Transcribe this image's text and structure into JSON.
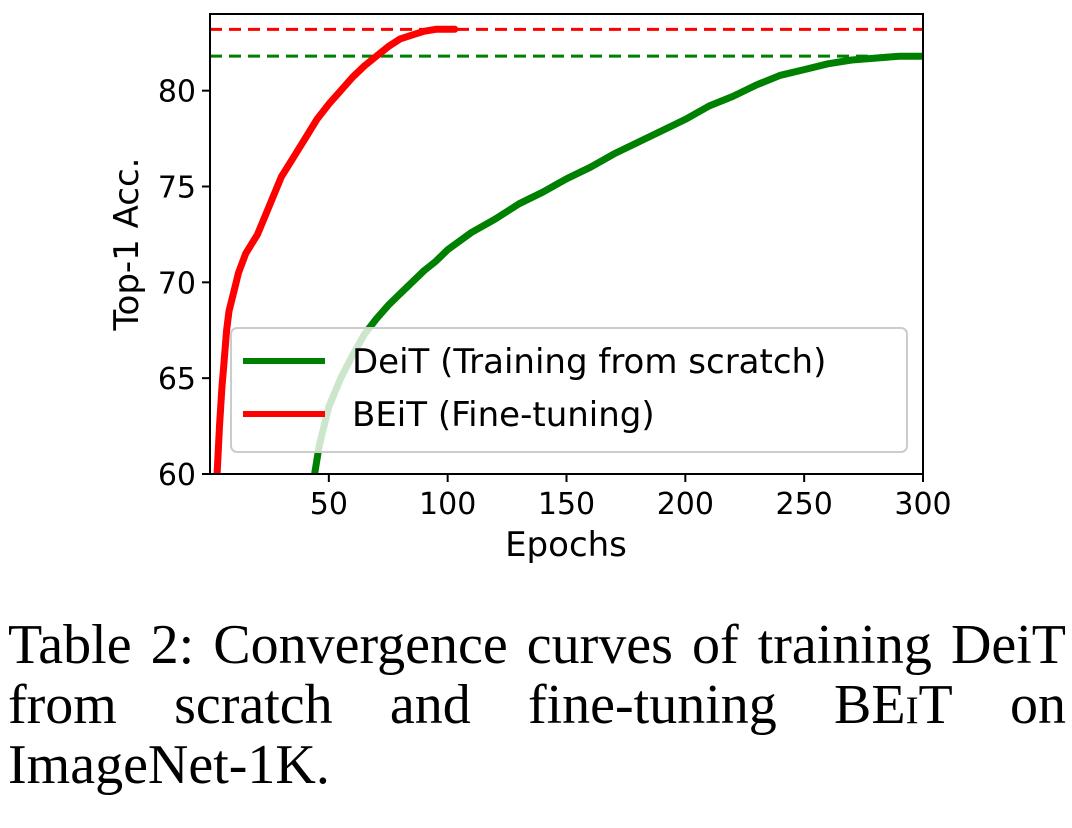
{
  "chart_data": {
    "type": "line",
    "xlabel": "Epochs",
    "ylabel": "Top-1 Acc.",
    "xlim": [
      0,
      300
    ],
    "ylim": [
      60,
      84
    ],
    "xticks": [
      50,
      100,
      150,
      200,
      250,
      300
    ],
    "yticks": [
      60,
      65,
      70,
      75,
      80
    ],
    "legend_position": "lower-right",
    "series": [
      {
        "name": "DeiT (Training from scratch)",
        "color": "#008000",
        "x": [
          44,
          46,
          50,
          55,
          60,
          65,
          70,
          75,
          80,
          85,
          90,
          95,
          100,
          110,
          120,
          130,
          140,
          150,
          160,
          170,
          180,
          190,
          200,
          210,
          220,
          230,
          240,
          250,
          260,
          270,
          280,
          290,
          300
        ],
        "y": [
          60.0,
          61.5,
          63.5,
          65.0,
          66.2,
          67.3,
          68.1,
          68.8,
          69.4,
          70.0,
          70.6,
          71.1,
          71.7,
          72.6,
          73.3,
          74.1,
          74.7,
          75.4,
          76.0,
          76.7,
          77.3,
          77.9,
          78.5,
          79.2,
          79.7,
          80.3,
          80.8,
          81.1,
          81.4,
          81.6,
          81.7,
          81.8,
          81.8
        ]
      },
      {
        "name": "BEiT (Fine-tuning)",
        "color": "#ff0000",
        "x": [
          3,
          4,
          5,
          6,
          7,
          8,
          10,
          12,
          15,
          20,
          25,
          30,
          35,
          40,
          45,
          50,
          55,
          60,
          65,
          70,
          75,
          80,
          85,
          90,
          95,
          100,
          103
        ],
        "y": [
          60.0,
          62.5,
          64.5,
          66.0,
          67.5,
          68.5,
          69.5,
          70.5,
          71.5,
          72.5,
          74.0,
          75.5,
          76.5,
          77.5,
          78.5,
          79.3,
          80.0,
          80.7,
          81.3,
          81.8,
          82.3,
          82.7,
          82.9,
          83.1,
          83.2,
          83.2,
          83.2
        ]
      }
    ],
    "reference_lines": [
      {
        "value": 83.2,
        "color": "#ff0000",
        "style": "dashed"
      },
      {
        "value": 81.8,
        "color": "#008000",
        "style": "dashed"
      }
    ]
  },
  "caption": {
    "prefix": "Table 2:  Convergence curves of training DeiT from scratch and fine-tuning ",
    "model": "BEiT",
    "suffix": " on ImageNet-1K."
  }
}
